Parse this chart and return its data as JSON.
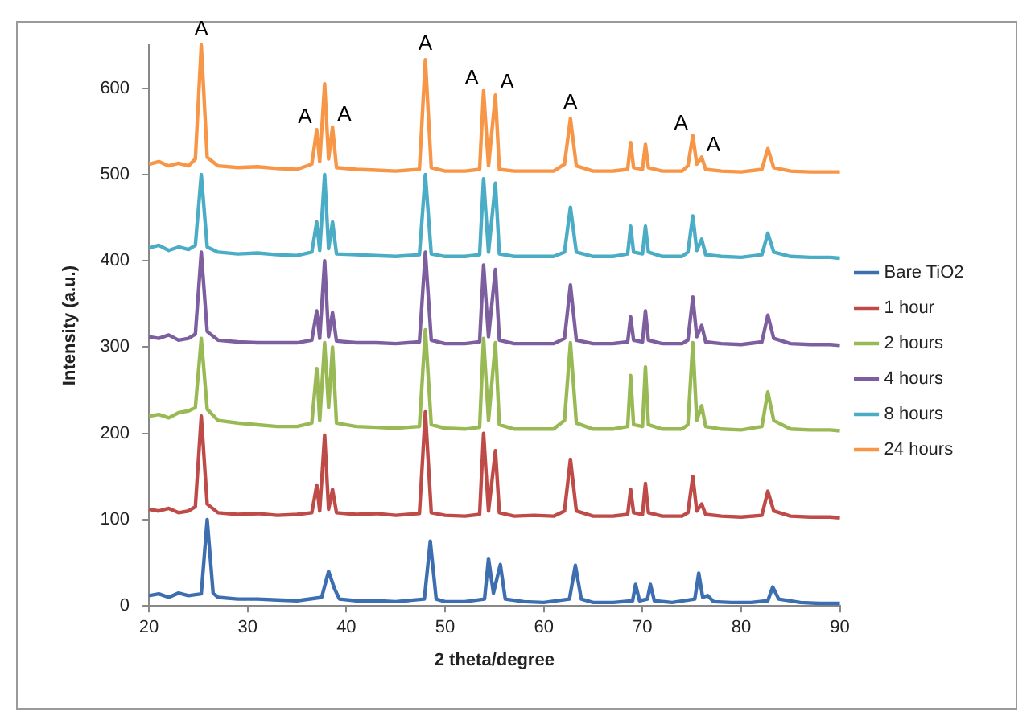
{
  "chart_data": {
    "type": "line",
    "xlabel": "2 theta/degree",
    "ylabel": "Intensity (a.u.)",
    "xlim": [
      20,
      90
    ],
    "xticks": [
      20,
      30,
      40,
      50,
      60,
      70,
      80,
      90
    ],
    "ylim": [
      0,
      650
    ],
    "yticks": [
      0,
      100,
      200,
      300,
      400,
      500,
      600
    ],
    "grid": false,
    "legend": "right",
    "marker": "none",
    "line_style": "solid",
    "annotations": [
      {
        "text": "A",
        "x": 25.3,
        "y": 650
      },
      {
        "text": "A",
        "x": 37.0,
        "y": 552
      },
      {
        "text": "A",
        "x": 38.6,
        "y": 555
      },
      {
        "text": "A",
        "x": 48.0,
        "y": 633
      },
      {
        "text": "A",
        "x": 53.9,
        "y": 597
      },
      {
        "text": "A",
        "x": 55.1,
        "y": 592
      },
      {
        "text": "A",
        "x": 62.7,
        "y": 565
      },
      {
        "text": "A",
        "x": 75.1,
        "y": 545
      },
      {
        "text": "A",
        "x": 76.0,
        "y": 520
      }
    ],
    "series": [
      {
        "name": "Bare TiO2",
        "color": "#3d6fb0",
        "x": [
          20,
          21,
          22,
          23,
          24,
          25.3,
          25.9,
          26.5,
          27,
          29,
          31,
          33,
          35,
          37.5,
          38.2,
          38.8,
          39.3,
          41,
          43,
          45,
          47.9,
          48.5,
          49.1,
          50,
          52,
          54.0,
          54.4,
          54.9,
          55.6,
          56.1,
          58,
          60,
          62.6,
          63.2,
          63.8,
          65,
          67,
          69.0,
          69.3,
          69.7,
          70.5,
          70.8,
          71.2,
          73,
          75.3,
          75.7,
          76.1,
          76.6,
          77.2,
          79,
          81,
          82.7,
          83.2,
          83.8,
          86,
          88,
          90
        ],
        "values": [
          12,
          14,
          10,
          15,
          12,
          14,
          100,
          15,
          10,
          8,
          8,
          7,
          6,
          10,
          40,
          20,
          8,
          6,
          6,
          5,
          8,
          75,
          8,
          5,
          5,
          8,
          55,
          15,
          48,
          8,
          5,
          4,
          8,
          47,
          8,
          4,
          4,
          6,
          25,
          6,
          8,
          25,
          6,
          4,
          8,
          38,
          10,
          12,
          5,
          4,
          4,
          6,
          22,
          8,
          4,
          3,
          3
        ]
      },
      {
        "name": "1 hour",
        "color": "#be4b48",
        "x": [
          20,
          21,
          22,
          23,
          24,
          24.7,
          25.3,
          25.9,
          27,
          29,
          31,
          33,
          35,
          36.5,
          37.0,
          37.3,
          37.8,
          38.2,
          38.6,
          39,
          41,
          43,
          45,
          47.4,
          48.0,
          48.6,
          50,
          52,
          53.5,
          53.9,
          54.4,
          55.1,
          55.5,
          57,
          59,
          61,
          62.1,
          62.7,
          63.3,
          65,
          67,
          68.5,
          68.8,
          69.1,
          70.0,
          70.3,
          70.6,
          72,
          74,
          74.6,
          75.1,
          75.5,
          76.0,
          76.4,
          78,
          80,
          82.1,
          82.7,
          83.3,
          85,
          87,
          89,
          90
        ],
        "values": [
          112,
          110,
          113,
          108,
          110,
          115,
          220,
          118,
          108,
          106,
          107,
          105,
          106,
          108,
          140,
          110,
          198,
          112,
          135,
          108,
          106,
          107,
          105,
          107,
          225,
          108,
          105,
          104,
          106,
          200,
          110,
          180,
          108,
          104,
          105,
          104,
          110,
          170,
          110,
          104,
          104,
          106,
          135,
          108,
          106,
          142,
          108,
          104,
          104,
          108,
          150,
          110,
          118,
          106,
          104,
          103,
          105,
          133,
          110,
          104,
          103,
          103,
          102
        ]
      },
      {
        "name": "2 hours",
        "color": "#98b954",
        "x": [
          20,
          21,
          22,
          23,
          24,
          24.7,
          25.3,
          25.9,
          27,
          29,
          31,
          33,
          35,
          36.5,
          37.0,
          37.3,
          37.8,
          38.2,
          38.6,
          39,
          41,
          43,
          45,
          47.4,
          48.0,
          48.6,
          50,
          52,
          53.5,
          53.9,
          54.4,
          55.1,
          55.5,
          57,
          59,
          61,
          62.1,
          62.7,
          63.3,
          65,
          67,
          68.5,
          68.8,
          69.1,
          70.0,
          70.3,
          70.6,
          72,
          74,
          74.6,
          75.1,
          75.5,
          76.0,
          76.4,
          78,
          80,
          82.1,
          82.7,
          83.3,
          85,
          87,
          89,
          90
        ],
        "values": [
          220,
          222,
          218,
          224,
          226,
          230,
          310,
          228,
          215,
          212,
          210,
          208,
          208,
          212,
          275,
          215,
          305,
          230,
          300,
          212,
          208,
          207,
          206,
          208,
          320,
          210,
          206,
          205,
          207,
          310,
          215,
          305,
          210,
          205,
          205,
          205,
          215,
          305,
          212,
          205,
          205,
          208,
          267,
          210,
          208,
          277,
          210,
          205,
          205,
          210,
          305,
          215,
          232,
          208,
          205,
          204,
          208,
          248,
          215,
          205,
          204,
          204,
          203
        ]
      },
      {
        "name": "4 hours",
        "color": "#7d5fa0",
        "x": [
          20,
          21,
          22,
          23,
          24,
          24.7,
          25.3,
          25.9,
          27,
          29,
          31,
          33,
          35,
          36.5,
          37.0,
          37.3,
          37.8,
          38.2,
          38.6,
          39,
          41,
          43,
          45,
          47.4,
          48.0,
          48.6,
          50,
          52,
          53.5,
          53.9,
          54.4,
          55.1,
          55.5,
          57,
          59,
          61,
          62.1,
          62.7,
          63.3,
          65,
          67,
          68.5,
          68.8,
          69.1,
          70.0,
          70.3,
          70.6,
          72,
          74,
          74.6,
          75.1,
          75.5,
          76.0,
          76.4,
          78,
          80,
          82.1,
          82.7,
          83.3,
          85,
          87,
          89,
          90
        ],
        "values": [
          312,
          310,
          314,
          308,
          310,
          315,
          410,
          318,
          308,
          306,
          305,
          305,
          305,
          308,
          342,
          310,
          400,
          312,
          340,
          307,
          305,
          305,
          304,
          306,
          410,
          308,
          304,
          304,
          306,
          395,
          312,
          390,
          308,
          304,
          304,
          304,
          310,
          372,
          308,
          304,
          304,
          306,
          335,
          308,
          306,
          342,
          308,
          304,
          304,
          308,
          358,
          312,
          325,
          306,
          304,
          303,
          306,
          337,
          310,
          304,
          303,
          303,
          302
        ]
      },
      {
        "name": "8 hours",
        "color": "#4bacc6",
        "x": [
          20,
          21,
          22,
          23,
          24,
          24.7,
          25.3,
          25.9,
          27,
          29,
          31,
          33,
          35,
          36.5,
          37.0,
          37.3,
          37.8,
          38.2,
          38.6,
          39,
          41,
          43,
          45,
          47.4,
          48.0,
          48.6,
          50,
          52,
          53.5,
          53.9,
          54.4,
          55.1,
          55.5,
          57,
          59,
          61,
          62.1,
          62.7,
          63.3,
          65,
          67,
          68.5,
          68.8,
          69.1,
          70.0,
          70.3,
          70.6,
          72,
          74,
          74.6,
          75.1,
          75.5,
          76.0,
          76.4,
          78,
          80,
          82.1,
          82.7,
          83.3,
          85,
          87,
          89,
          90
        ],
        "values": [
          415,
          418,
          412,
          416,
          413,
          418,
          500,
          416,
          410,
          408,
          409,
          407,
          406,
          410,
          445,
          412,
          500,
          414,
          445,
          408,
          407,
          406,
          405,
          407,
          500,
          408,
          405,
          405,
          407,
          495,
          410,
          490,
          408,
          405,
          405,
          405,
          410,
          462,
          410,
          405,
          405,
          408,
          440,
          410,
          408,
          440,
          410,
          405,
          405,
          410,
          452,
          412,
          425,
          407,
          405,
          404,
          407,
          432,
          410,
          405,
          404,
          404,
          403
        ]
      },
      {
        "name": "24 hours",
        "color": "#f79646",
        "x": [
          20,
          21,
          22,
          23,
          24,
          24.7,
          25.3,
          25.9,
          27,
          29,
          31,
          33,
          35,
          36.5,
          37.0,
          37.3,
          37.8,
          38.2,
          38.6,
          39,
          41,
          43,
          45,
          47.4,
          48.0,
          48.6,
          50,
          52,
          53.5,
          53.9,
          54.4,
          55.1,
          55.5,
          57,
          59,
          61,
          62.1,
          62.7,
          63.3,
          65,
          67,
          68.5,
          68.8,
          69.1,
          70.0,
          70.3,
          70.6,
          72,
          74,
          74.6,
          75.1,
          75.5,
          76.0,
          76.4,
          78,
          80,
          82.1,
          82.7,
          83.3,
          85,
          87,
          89,
          90
        ],
        "values": [
          512,
          515,
          510,
          513,
          510,
          518,
          650,
          520,
          510,
          508,
          509,
          507,
          506,
          512,
          552,
          515,
          605,
          518,
          555,
          508,
          506,
          505,
          504,
          506,
          633,
          508,
          504,
          504,
          506,
          597,
          510,
          592,
          506,
          504,
          504,
          504,
          512,
          565,
          510,
          504,
          504,
          506,
          537,
          508,
          506,
          535,
          508,
          504,
          504,
          510,
          545,
          512,
          520,
          506,
          504,
          503,
          506,
          530,
          508,
          504,
          503,
          503,
          503
        ]
      }
    ]
  }
}
